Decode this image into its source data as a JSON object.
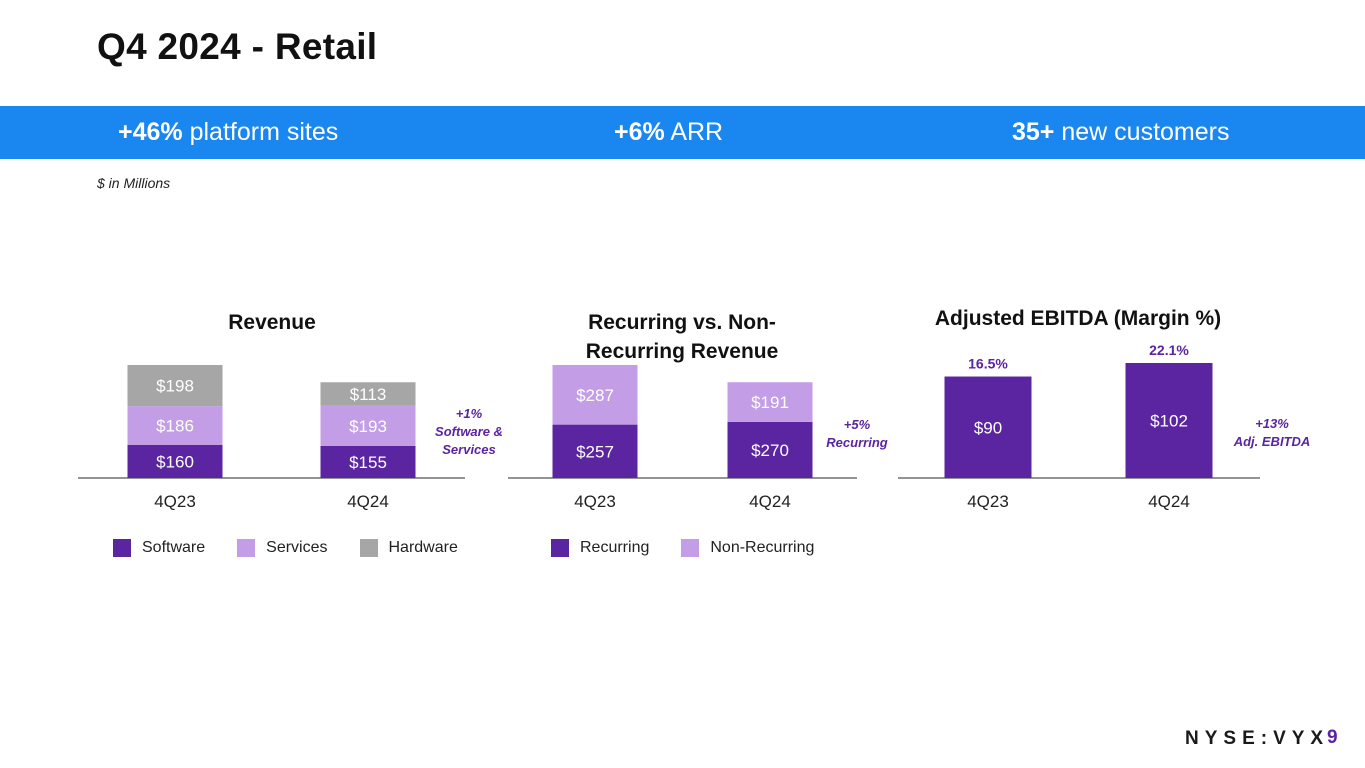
{
  "slide": {
    "title": "Q4 2024 - Retail",
    "units_note": "$ in Millions",
    "page_number": "9",
    "brand": "NYSE:VYX"
  },
  "banner": {
    "kpis": [
      {
        "value": "+46%",
        "label": "platform sites"
      },
      {
        "value": "+6%",
        "label": "ARR"
      },
      {
        "value": "35+",
        "label": "new customers"
      }
    ]
  },
  "colors": {
    "banner": "#1a87f0",
    "software": "#5b24a0",
    "services": "#c39de6",
    "hardware": "#a6a6a6",
    "recurring": "#5b24a0",
    "non_recurring": "#c39de6",
    "ebitda": "#5b24a0",
    "accent_text": "#5b24a0",
    "axis": "#555555",
    "page_number": "#5b24a0"
  },
  "chart_data": [
    {
      "type": "bar",
      "stacked": true,
      "title": "Revenue",
      "categories": [
        "4Q23",
        "4Q24"
      ],
      "series": [
        {
          "name": "Software",
          "values": [
            160,
            155
          ],
          "labels": [
            "$160",
            "$155"
          ]
        },
        {
          "name": "Services",
          "values": [
            186,
            193
          ],
          "labels": [
            "$186",
            "$193"
          ]
        },
        {
          "name": "Hardware",
          "values": [
            198,
            113
          ],
          "labels": [
            "$198",
            "$113"
          ]
        }
      ],
      "annotation": [
        "+1%",
        "Software &",
        "Services"
      ],
      "legend": [
        "Software",
        "Services",
        "Hardware"
      ]
    },
    {
      "type": "bar",
      "stacked": true,
      "title": "Recurring vs. Non-Recurring Revenue",
      "title_lines": [
        "Recurring vs. Non-",
        "Recurring Revenue"
      ],
      "categories": [
        "4Q23",
        "4Q24"
      ],
      "series": [
        {
          "name": "Recurring",
          "values": [
            257,
            270
          ],
          "labels": [
            "$257",
            "$270"
          ]
        },
        {
          "name": "Non-Recurring",
          "values": [
            287,
            191
          ],
          "labels": [
            "$287",
            "$191"
          ]
        }
      ],
      "annotation": [
        "+5%",
        "Recurring"
      ],
      "legend": [
        "Recurring",
        "Non-Recurring"
      ]
    },
    {
      "type": "bar",
      "stacked": false,
      "title": "Adjusted EBITDA (Margin %)",
      "categories": [
        "4Q23",
        "4Q24"
      ],
      "series": [
        {
          "name": "Adjusted EBITDA",
          "values": [
            90,
            102
          ],
          "labels": [
            "$90",
            "$102"
          ]
        }
      ],
      "margins": [
        "16.5%",
        "22.1%"
      ],
      "annotation": [
        "+13%",
        "Adj. EBITDA"
      ]
    }
  ]
}
